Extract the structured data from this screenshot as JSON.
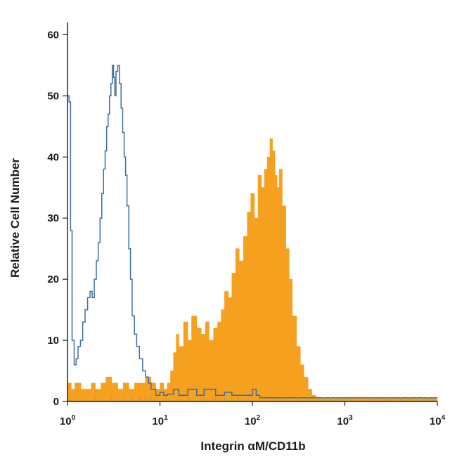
{
  "chart_data": {
    "type": "area",
    "title": "",
    "xlabel": "Integrin αM/CD11b",
    "ylabel": "Relative Cell Number",
    "xscale": "log",
    "xlim": [
      1,
      10000
    ],
    "ylim": [
      0,
      62
    ],
    "x_ticks": [
      {
        "value": 1,
        "base": "10",
        "exp": "0"
      },
      {
        "value": 10,
        "base": "10",
        "exp": "1"
      },
      {
        "value": 100,
        "base": "10",
        "exp": "2"
      },
      {
        "value": 1000,
        "base": "10",
        "exp": "3"
      },
      {
        "value": 10000,
        "base": "10",
        "exp": "4"
      }
    ],
    "y_ticks": [
      {
        "value": 0,
        "label": "0"
      },
      {
        "value": 10,
        "label": "10"
      },
      {
        "value": 20,
        "label": "20"
      },
      {
        "value": 30,
        "label": "30"
      },
      {
        "value": 40,
        "label": "40"
      },
      {
        "value": 50,
        "label": "50"
      },
      {
        "value": 60,
        "label": "60"
      }
    ],
    "grid": false,
    "legend": "none",
    "series": [
      {
        "style": "filled",
        "color": "#f6a020",
        "x": [
          1.0,
          1.1,
          1.2,
          1.4,
          1.6,
          1.8,
          2.0,
          2.3,
          2.6,
          3.0,
          3.5,
          4.0,
          4.6,
          5.3,
          6.0,
          7.0,
          8.0,
          9.0,
          10.0,
          11.0,
          12.0,
          13.0,
          14.0,
          15.0,
          16.0,
          18.0,
          20.0,
          22.0,
          25.0,
          28.0,
          31.0,
          34.0,
          38.0,
          42.0,
          46.0,
          50.0,
          55.0,
          60.0,
          66.0,
          72.0,
          80.0,
          88.0,
          96.0,
          105.0,
          115.0,
          125.0,
          135.0,
          145.0,
          155.0,
          165.0,
          175.0,
          185.0,
          195.0,
          210.0,
          230.0,
          250.0,
          270.0,
          300.0,
          330.0,
          360.0,
          400.0,
          440.0,
          480.0,
          510.0,
          600.0,
          1000.0,
          3000.0,
          10000.0
        ],
        "y": [
          3,
          2,
          3,
          2,
          2,
          3,
          2,
          3,
          4,
          3,
          2,
          3,
          2,
          3,
          3,
          4,
          3,
          2,
          3,
          2,
          3,
          5,
          8,
          11,
          9,
          13,
          10,
          14,
          12,
          11,
          13,
          10,
          12,
          13,
          15,
          18,
          17,
          21,
          25,
          23,
          27,
          31,
          34,
          30,
          37,
          35,
          38,
          40,
          43,
          41,
          37,
          35,
          38,
          32,
          25,
          20,
          14,
          9,
          6,
          4,
          2,
          1,
          0.8,
          0.6,
          0.6,
          0.6,
          0.6,
          0.6
        ]
      },
      {
        "style": "outline",
        "color": "#3e6f9e",
        "x": [
          1.0,
          1.04,
          1.08,
          1.12,
          1.18,
          1.24,
          1.3,
          1.38,
          1.46,
          1.55,
          1.65,
          1.75,
          1.85,
          1.95,
          2.05,
          2.15,
          2.25,
          2.35,
          2.45,
          2.55,
          2.65,
          2.75,
          2.85,
          2.95,
          3.05,
          3.15,
          3.25,
          3.35,
          3.5,
          3.65,
          3.8,
          3.95,
          4.1,
          4.25,
          4.4,
          4.6,
          4.8,
          5.0,
          5.3,
          5.6,
          6.0,
          6.5,
          7.0,
          7.5,
          8.0,
          8.5,
          9.0,
          10.0,
          11.0,
          12.0,
          14.0,
          16.0,
          20.0,
          25.0,
          30.0,
          40.0,
          50.0,
          60.0,
          80.0,
          100.0,
          110.0,
          120.0,
          150.0,
          200.0,
          500.0,
          1000.0,
          5000.0,
          10000.0
        ],
        "y": [
          50,
          49,
          28,
          10,
          6,
          7,
          9,
          10,
          13,
          15,
          17,
          18,
          17,
          20,
          23,
          26,
          30,
          34,
          38,
          41,
          45,
          47,
          50,
          52,
          55,
          53,
          50,
          54,
          55,
          52,
          48,
          44,
          40,
          37,
          32,
          25,
          20,
          14,
          11,
          9,
          7,
          5,
          4,
          3,
          2,
          2,
          1,
          1.5,
          1,
          1.2,
          2,
          1,
          2,
          1,
          2,
          1,
          1.5,
          1,
          1,
          2,
          1,
          0.6,
          0.6,
          0.6,
          0.6,
          0.6,
          0.6,
          0.6
        ]
      }
    ]
  }
}
